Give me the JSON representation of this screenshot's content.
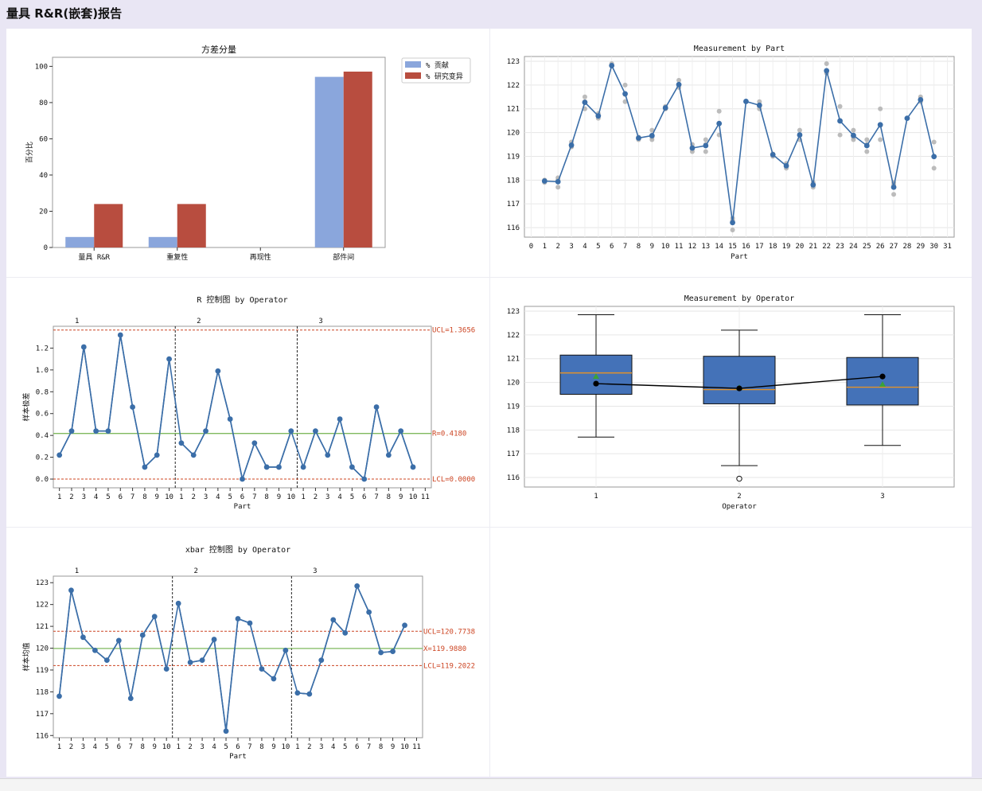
{
  "page": {
    "title": "量具 R&R(嵌套)报告"
  },
  "chart_data": [
    {
      "id": "variance",
      "type": "bar",
      "title": "方差分量",
      "ylabel": "百分比",
      "ylim": [
        0,
        105
      ],
      "yticks": [
        0,
        20,
        40,
        60,
        80,
        100
      ],
      "categories": [
        "量具 R&R",
        "重复性",
        "再现性",
        "部件间"
      ],
      "series": [
        {
          "name": "% 贡献",
          "color": "#8aa6dc",
          "values": [
            5.8,
            5.8,
            0,
            94.2
          ]
        },
        {
          "name": "% 研究变异",
          "color": "#b84d3f",
          "values": [
            24.0,
            24.0,
            0,
            97.1
          ]
        }
      ],
      "legend": "top-right",
      "grid": false
    },
    {
      "id": "meas-part",
      "type": "line",
      "title": "Measurement by Part",
      "xlabel": "Part",
      "ylim": [
        115.6,
        123.2
      ],
      "yticks": [
        116,
        117,
        118,
        119,
        120,
        121,
        122,
        123
      ],
      "xlim": [
        -0.5,
        31.5
      ],
      "xticks": [
        "0",
        "1",
        "2",
        "3",
        "4",
        "5",
        "6",
        "7",
        "8",
        "9",
        "10",
        "11",
        "12",
        "13",
        "14",
        "15",
        "16",
        "17",
        "18",
        "19",
        "20",
        "21",
        "22",
        "23",
        "24",
        "25",
        "26",
        "27",
        "28",
        "29",
        "30",
        "31"
      ],
      "mean_color": "#3b6ea8",
      "obs_color": "#b0b0b0",
      "means": [
        117.96,
        117.93,
        119.47,
        121.27,
        120.7,
        122.82,
        121.63,
        119.77,
        119.87,
        121.04,
        122.02,
        119.35,
        119.45,
        120.38,
        116.21,
        121.31,
        121.15,
        119.07,
        118.6,
        119.9,
        117.8,
        122.6,
        120.49,
        119.88,
        119.45,
        120.33,
        117.7,
        120.6,
        121.38,
        118.99
      ],
      "obs": [
        [
          118.0,
          117.9,
          118.0
        ],
        [
          118.1,
          117.7,
          118.0
        ],
        [
          119.6,
          119.4,
          119.4
        ],
        [
          121.5,
          121.0,
          121.3
        ],
        [
          120.8,
          120.6,
          120.7
        ],
        [
          122.9,
          122.8,
          122.8
        ],
        [
          122.0,
          121.3,
          121.6
        ],
        [
          119.7,
          119.8,
          119.8
        ],
        [
          120.1,
          119.7,
          119.8
        ],
        [
          121.1,
          121.0,
          121.0
        ],
        [
          122.2,
          121.9,
          122.0
        ],
        [
          119.5,
          119.2,
          119.3
        ],
        [
          119.7,
          119.2,
          119.5
        ],
        [
          120.9,
          119.9,
          120.4
        ],
        [
          116.4,
          115.9,
          116.3
        ],
        [
          121.3,
          121.3,
          121.3
        ],
        [
          121.3,
          121.0,
          121.1
        ],
        [
          119.1,
          119.0,
          119.1
        ],
        [
          118.7,
          118.5,
          118.6
        ],
        [
          120.1,
          119.7,
          119.9
        ],
        [
          117.9,
          117.7,
          117.8
        ],
        [
          122.9,
          122.5,
          122.6
        ],
        [
          121.1,
          119.9,
          120.5
        ],
        [
          120.1,
          119.7,
          119.8
        ],
        [
          119.7,
          119.2,
          119.5
        ],
        [
          121.0,
          119.7,
          120.3
        ],
        [
          117.8,
          117.4,
          117.9
        ],
        [
          120.6,
          120.6,
          120.6
        ],
        [
          121.5,
          121.3,
          121.4
        ],
        [
          119.6,
          118.5,
          119.0
        ]
      ],
      "grid": true
    },
    {
      "id": "r-chart",
      "type": "line",
      "title": "R 控制图 by Operator",
      "ylabel": "样本极差",
      "xlabel": "Part",
      "ylim": [
        -0.08,
        1.4
      ],
      "yticks": [
        0.0,
        0.2,
        0.4,
        0.6,
        0.8,
        1.0,
        1.2
      ],
      "ytick_labels": [
        "0.0",
        "0.2",
        "0.4",
        "0.6",
        "0.8",
        "1.0",
        "1.2"
      ],
      "group_labels": [
        "1",
        "2",
        "3"
      ],
      "xtick_labels": [
        "1",
        "2",
        "3",
        "4",
        "5",
        "6",
        "7",
        "8",
        "9",
        "10",
        "1",
        "2",
        "3",
        "4",
        "5",
        "6",
        "7",
        "8",
        "9",
        "10",
        "1",
        "2",
        "3",
        "4",
        "5",
        "6",
        "7",
        "8",
        "9",
        "10",
        "11"
      ],
      "values": [
        0.22,
        0.44,
        1.21,
        0.44,
        0.44,
        1.32,
        0.66,
        0.11,
        0.22,
        1.1,
        0.33,
        0.22,
        0.44,
        0.99,
        0.55,
        0.0,
        0.33,
        0.11,
        0.11,
        0.44,
        0.11,
        0.44,
        0.22,
        0.55,
        0.11,
        0.0,
        0.66,
        0.22,
        0.44,
        0.11
      ],
      "ucl": 1.3656,
      "center": 0.418,
      "lcl": 0.0,
      "limit_labels": {
        "ucl": "UCL=1.3656",
        "center": "R=0.4180",
        "lcl": "LCL=0.0000"
      },
      "line_color": "#3b6ea8",
      "center_color": "#7fb95e",
      "limit_color": "#cc4422"
    },
    {
      "id": "meas-operator",
      "type": "box",
      "title": "Measurement by Operator",
      "xlabel": "Operator",
      "categories": [
        "1",
        "2",
        "3"
      ],
      "ylim": [
        115.6,
        123.2
      ],
      "yticks": [
        116,
        117,
        118,
        119,
        120,
        121,
        122,
        123
      ],
      "boxes": [
        {
          "whisker_low": 117.7,
          "q1": 119.5,
          "median": 120.4,
          "q3": 121.15,
          "whisker_high": 122.85,
          "mean": 120.25,
          "outliers": []
        },
        {
          "whisker_low": 116.5,
          "q1": 119.1,
          "median": 119.7,
          "q3": 121.1,
          "whisker_high": 122.2,
          "mean": 119.78,
          "outliers": [
            115.95
          ]
        },
        {
          "whisker_low": 117.35,
          "q1": 119.05,
          "median": 119.8,
          "q3": 121.05,
          "whisker_high": 122.85,
          "mean": 119.92,
          "outliers": []
        }
      ],
      "connect_means": [
        119.95,
        119.75,
        120.25
      ],
      "box_color": "#4472b8",
      "median_color": "#e2922a",
      "mean_marker_color": "#3aa23a",
      "grid": true
    },
    {
      "id": "xbar-chart",
      "type": "line",
      "title": "xbar 控制图 by Operator",
      "ylabel": "样本均值",
      "xlabel": "Part",
      "ylim": [
        115.9,
        123.3
      ],
      "yticks": [
        116,
        117,
        118,
        119,
        120,
        121,
        122,
        123
      ],
      "group_labels": [
        "1",
        "2",
        "3"
      ],
      "xtick_labels": [
        "1",
        "2",
        "3",
        "4",
        "5",
        "6",
        "7",
        "8",
        "9",
        "10",
        "1",
        "2",
        "3",
        "4",
        "5",
        "6",
        "7",
        "8",
        "9",
        "10",
        "1",
        "2",
        "3",
        "4",
        "5",
        "6",
        "7",
        "8",
        "9",
        "10",
        "11"
      ],
      "values": [
        117.8,
        122.65,
        120.5,
        119.9,
        119.45,
        120.35,
        117.7,
        120.6,
        121.45,
        119.05,
        122.05,
        119.35,
        119.45,
        120.4,
        116.2,
        121.35,
        121.15,
        119.05,
        118.6,
        119.9,
        117.95,
        117.9,
        119.45,
        121.3,
        120.7,
        122.85,
        121.65,
        119.8,
        119.85,
        121.05
      ],
      "ucl": 120.7738,
      "center": 119.988,
      "lcl": 119.2022,
      "limit_labels": {
        "ucl": "UCL=120.7738",
        "center": "X=119.9880",
        "lcl": "LCL=119.2022"
      },
      "line_color": "#3b6ea8",
      "center_color": "#7fb95e",
      "limit_color": "#cc4422"
    }
  ]
}
